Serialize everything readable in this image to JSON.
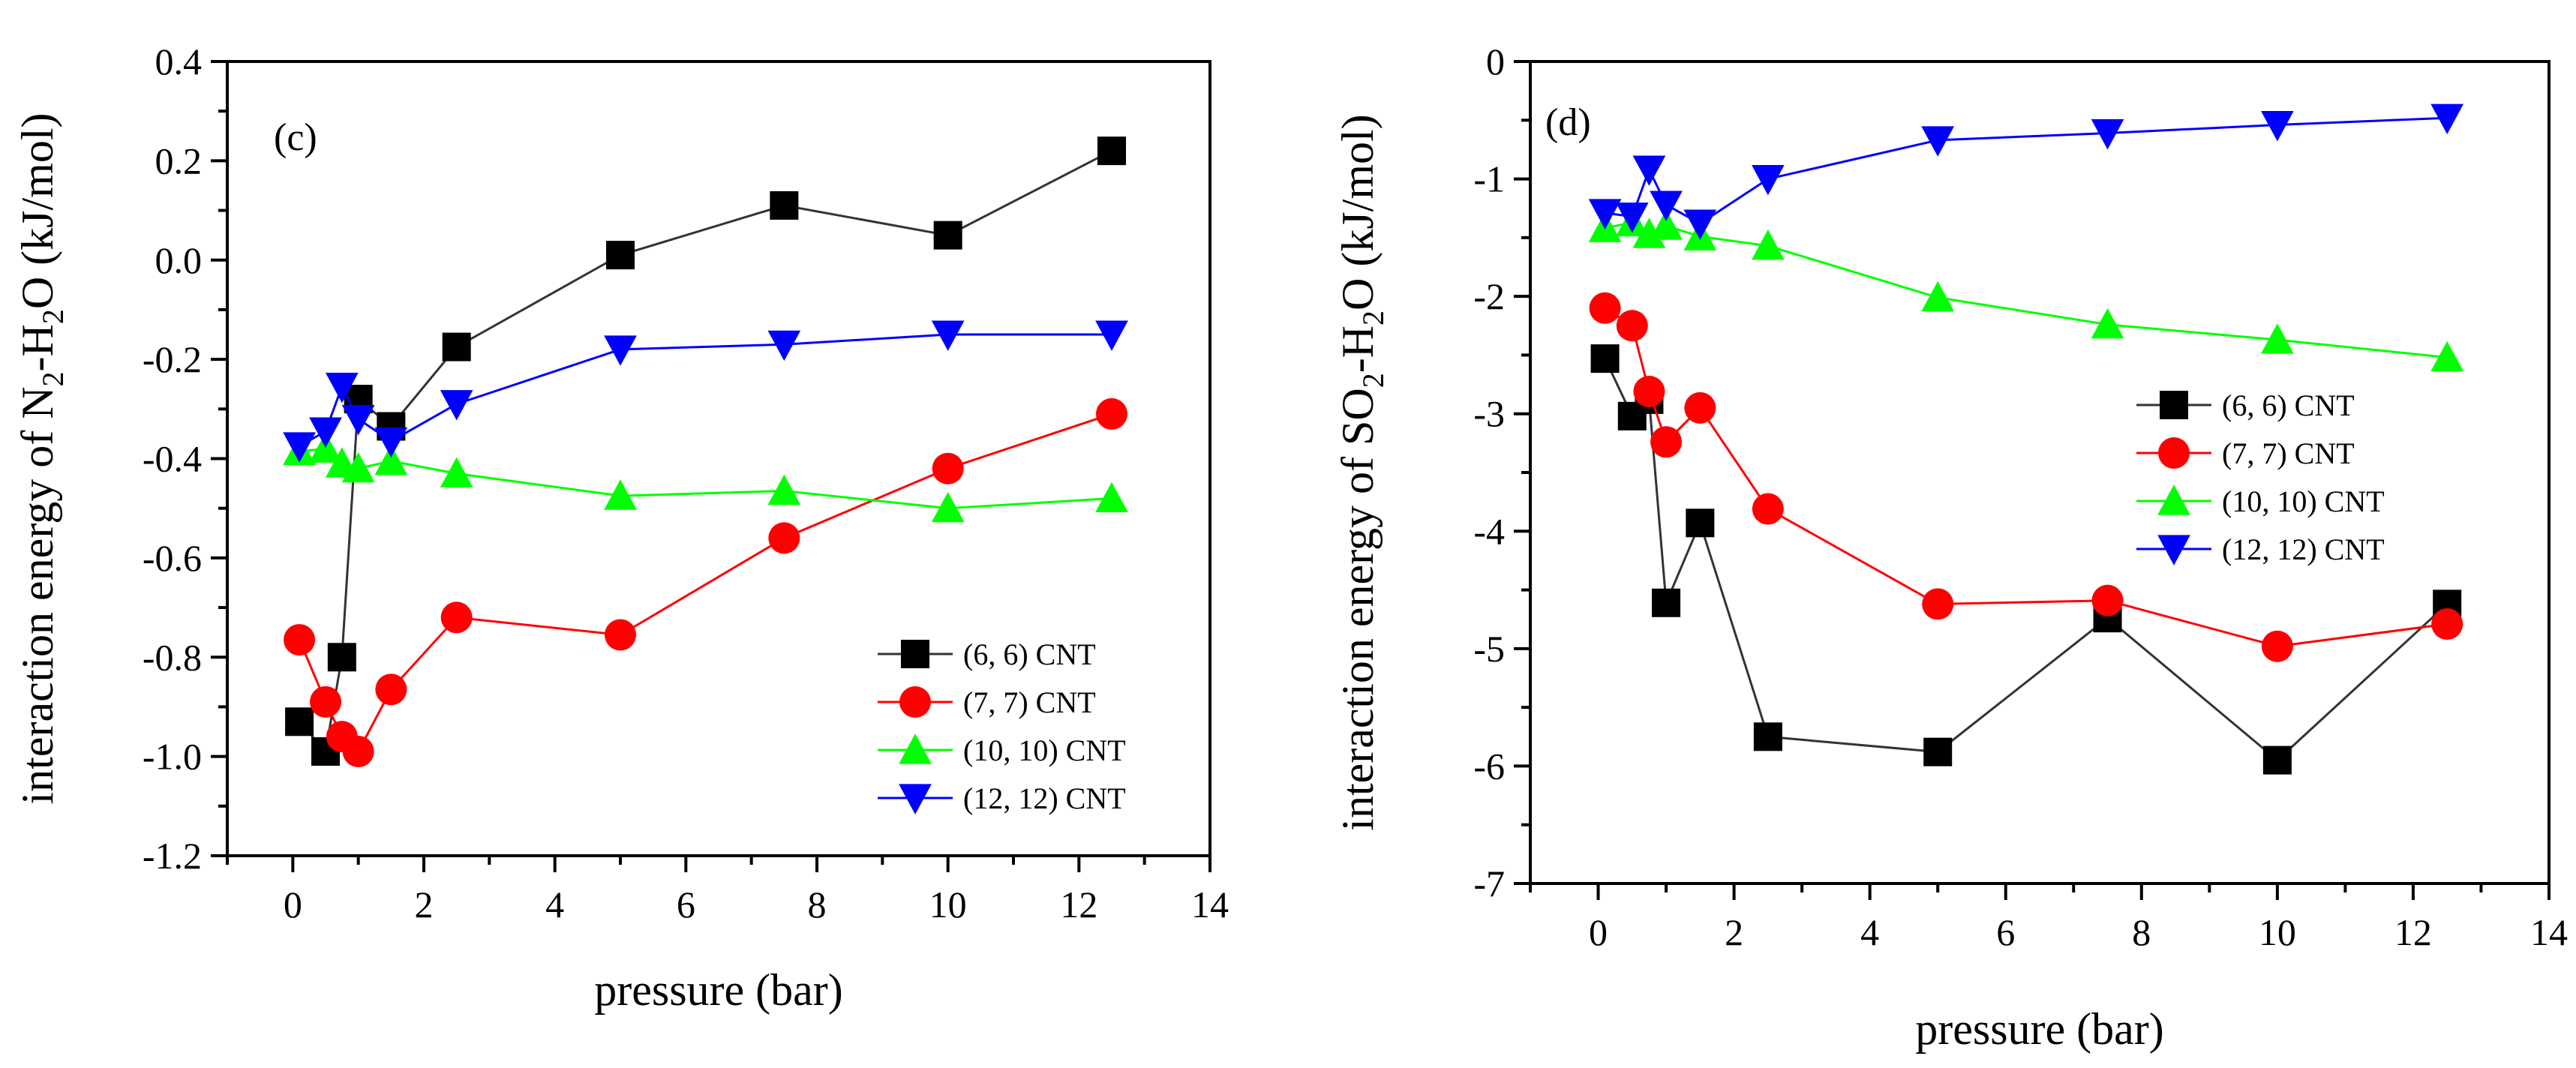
{
  "chart_data": [
    {
      "type": "line",
      "panel_label": "(c)",
      "xlabel": "pressure (bar)",
      "ylabel": {
        "prefix": "interaction energy of N",
        "sub1": "2",
        "mid": "-H",
        "sub2": "2",
        "suffix": "O (kJ/mol)"
      },
      "xlim": [
        -1,
        14
      ],
      "ylim": [
        -1.2,
        0.4
      ],
      "xticks": [
        0,
        2,
        4,
        6,
        8,
        10,
        12,
        14
      ],
      "xtick_labels": [
        "0",
        "2",
        "4",
        "6",
        "8",
        "10",
        "12",
        "14"
      ],
      "yticks": [
        -1.2,
        -1.0,
        -0.8,
        -0.6,
        -0.4,
        -0.2,
        0.0,
        0.2,
        0.4
      ],
      "ytick_labels": [
        "-1.2",
        "-1.0",
        "-0.8",
        "-0.6",
        "-0.4",
        "-0.2",
        "0.0",
        "0.2",
        "0.4"
      ],
      "legend_position": "lower-right",
      "x": [
        0.1,
        0.5,
        0.75,
        1.0,
        1.5,
        2.5,
        5.0,
        7.5,
        10.0,
        12.5
      ],
      "series": [
        {
          "name": "(6, 6) CNT",
          "color": "#000000",
          "line_color": "#333333",
          "marker": "square",
          "values": [
            -0.93,
            -0.99,
            -0.8,
            -0.28,
            -0.335,
            -0.175,
            0.01,
            0.11,
            0.05,
            0.22
          ]
        },
        {
          "name": "(7, 7) CNT",
          "color": "#ff0000",
          "line_color": "#ff0000",
          "marker": "circle",
          "values": [
            -0.765,
            -0.89,
            -0.96,
            -0.99,
            -0.865,
            -0.72,
            -0.755,
            -0.56,
            -0.42,
            -0.31
          ]
        },
        {
          "name": "(10, 10) CNT",
          "color": "#00ff00",
          "line_color": "#00ff00",
          "marker": "triangle-up",
          "values": [
            -0.385,
            -0.38,
            -0.41,
            -0.42,
            -0.405,
            -0.43,
            -0.475,
            -0.465,
            -0.5,
            -0.48
          ]
        },
        {
          "name": "(12, 12) CNT",
          "color": "#0000ff",
          "line_color": "#0000ff",
          "marker": "triangle-down",
          "values": [
            -0.375,
            -0.345,
            -0.255,
            -0.32,
            -0.365,
            -0.29,
            -0.18,
            -0.17,
            -0.15,
            -0.15
          ]
        }
      ]
    },
    {
      "type": "line",
      "panel_label": "(d)",
      "xlabel": "pressure (bar)",
      "ylabel": {
        "prefix": "interaction energy of SO",
        "sub1": "2",
        "mid": "-H",
        "sub2": "2",
        "suffix": "O (kJ/mol)"
      },
      "xlim": [
        -1,
        14
      ],
      "ylim": [
        -7,
        0
      ],
      "xticks": [
        0,
        2,
        4,
        6,
        8,
        10,
        12,
        14
      ],
      "xtick_labels": [
        "0",
        "2",
        "4",
        "6",
        "8",
        "10",
        "12",
        "14"
      ],
      "yticks": [
        -7,
        -6,
        -5,
        -4,
        -3,
        -2,
        -1,
        0
      ],
      "ytick_labels": [
        "-7",
        "-6",
        "-5",
        "-4",
        "-3",
        "-2",
        "-1",
        "0"
      ],
      "legend_position": "center-right",
      "x": [
        0.1,
        0.5,
        0.75,
        1.0,
        1.5,
        2.5,
        5.0,
        7.5,
        10.0,
        12.5
      ],
      "series": [
        {
          "name": "(6, 6) CNT",
          "color": "#000000",
          "line_color": "#333333",
          "marker": "square",
          "values": [
            -2.53,
            -3.02,
            -2.88,
            -4.61,
            -3.93,
            -5.75,
            -5.88,
            -4.74,
            -5.95,
            -4.62
          ]
        },
        {
          "name": "(7, 7) CNT",
          "color": "#ff0000",
          "line_color": "#ff0000",
          "marker": "circle",
          "values": [
            -2.1,
            -2.25,
            -2.81,
            -3.24,
            -2.95,
            -3.81,
            -4.62,
            -4.59,
            -4.98,
            -4.79
          ]
        },
        {
          "name": "(10, 10) CNT",
          "color": "#00ff00",
          "line_color": "#00ff00",
          "marker": "triangle-up",
          "values": [
            -1.42,
            -1.37,
            -1.47,
            -1.4,
            -1.49,
            -1.57,
            -2.01,
            -2.24,
            -2.37,
            -2.52
          ]
        },
        {
          "name": "(12, 12) CNT",
          "color": "#0000ff",
          "line_color": "#0000ff",
          "marker": "triangle-down",
          "values": [
            -1.29,
            -1.32,
            -0.92,
            -1.22,
            -1.38,
            -1.0,
            -0.67,
            -0.61,
            -0.54,
            -0.48
          ]
        }
      ]
    }
  ]
}
